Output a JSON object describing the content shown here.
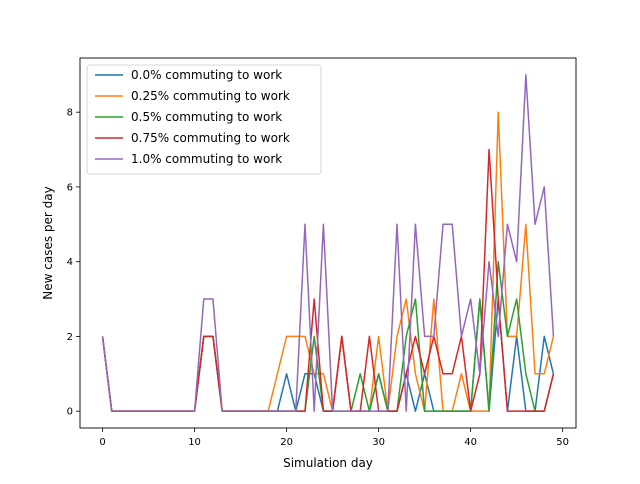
{
  "chart_data": {
    "type": "line",
    "title": "",
    "xlabel": "Simulation day",
    "ylabel": "New cases per day",
    "xlim": [
      -2.45,
      51.45
    ],
    "ylim": [
      -0.45,
      9.45
    ],
    "xticks": [
      0,
      10,
      20,
      30,
      40,
      50
    ],
    "yticks": [
      0,
      2,
      4,
      6,
      8
    ],
    "grid": false,
    "legend_position": "top-left",
    "x": [
      0,
      1,
      2,
      3,
      4,
      5,
      6,
      7,
      8,
      9,
      10,
      11,
      12,
      13,
      14,
      15,
      16,
      17,
      18,
      19,
      20,
      21,
      22,
      23,
      24,
      25,
      26,
      27,
      28,
      29,
      30,
      31,
      32,
      33,
      34,
      35,
      36,
      37,
      38,
      39,
      40,
      41,
      42,
      43,
      44,
      45,
      46,
      47,
      48,
      49
    ],
    "series": [
      {
        "name": "0.0% commuting to work",
        "color": "#1f77b4",
        "values": [
          2,
          0,
          0,
          0,
          0,
          0,
          0,
          0,
          0,
          0,
          0,
          2,
          2,
          0,
          0,
          0,
          0,
          0,
          0,
          0,
          1,
          0,
          1,
          1,
          0,
          0,
          2,
          0,
          0,
          0,
          1,
          0,
          0,
          1,
          0,
          1,
          0,
          0,
          0,
          0,
          0,
          3,
          0,
          3,
          0,
          2,
          0,
          0,
          2,
          1
        ]
      },
      {
        "name": "0.25% commuting to work",
        "color": "#ff7f0e",
        "values": [
          2,
          0,
          0,
          0,
          0,
          0,
          0,
          0,
          0,
          0,
          0,
          2,
          2,
          0,
          0,
          0,
          0,
          0,
          0,
          1,
          2,
          2,
          2,
          1,
          1,
          0,
          2,
          0,
          0,
          0,
          2,
          0,
          2,
          3,
          1,
          0,
          3,
          0,
          0,
          1,
          0,
          0,
          0,
          8,
          2,
          2,
          5,
          1,
          1,
          2
        ]
      },
      {
        "name": "0.5% commuting to work",
        "color": "#2ca02c",
        "values": [
          2,
          0,
          0,
          0,
          0,
          0,
          0,
          0,
          0,
          0,
          0,
          2,
          2,
          0,
          0,
          0,
          0,
          0,
          0,
          0,
          0,
          0,
          0,
          2,
          0,
          0,
          0,
          0,
          1,
          0,
          1,
          0,
          0,
          2,
          3,
          0,
          0,
          0,
          0,
          0,
          0,
          3,
          0,
          4,
          2,
          3,
          1,
          0,
          0,
          1
        ]
      },
      {
        "name": "0.75% commuting to work",
        "color": "#d62728",
        "values": [
          2,
          0,
          0,
          0,
          0,
          0,
          0,
          0,
          0,
          0,
          0,
          2,
          2,
          0,
          0,
          0,
          0,
          0,
          0,
          0,
          0,
          0,
          0,
          3,
          0,
          0,
          2,
          0,
          0,
          2,
          0,
          0,
          0,
          1,
          2,
          1,
          2,
          1,
          1,
          2,
          0,
          1,
          7,
          3,
          0,
          0,
          0,
          0,
          0,
          1
        ]
      },
      {
        "name": "1.0% commuting to work",
        "color": "#9467bd",
        "values": [
          2,
          0,
          0,
          0,
          0,
          0,
          0,
          0,
          0,
          0,
          0,
          3,
          3,
          0,
          0,
          0,
          0,
          0,
          0,
          0,
          0,
          0,
          5,
          0,
          5,
          0,
          0,
          0,
          0,
          0,
          0,
          0,
          5,
          0,
          5,
          2,
          2,
          5,
          5,
          2,
          3,
          1,
          4,
          2,
          5,
          4,
          9,
          5,
          6,
          2
        ]
      }
    ]
  }
}
